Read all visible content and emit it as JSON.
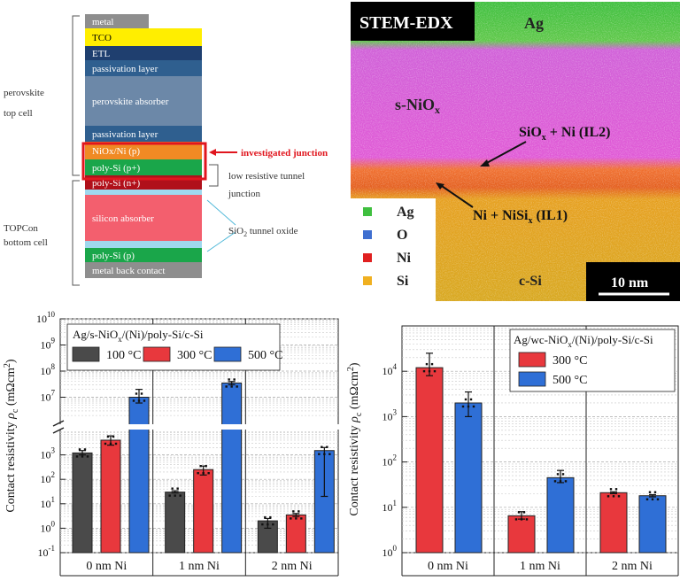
{
  "stack": {
    "layers": [
      {
        "label": "metal",
        "color": "#8e8e8e",
        "text": "#ffffff"
      },
      {
        "label": "TCO",
        "color": "#ffee00",
        "text": "#000000"
      },
      {
        "label": "ETL",
        "color": "#1f3f6f",
        "text": "#ffffff"
      },
      {
        "label": "passivation layer",
        "color": "#2f5f8f",
        "text": "#ffffff"
      },
      {
        "label": "perovskite absorber",
        "color": "#6c88a8",
        "text": "#ffffff"
      },
      {
        "label": "passivation layer",
        "color": "#2f5f8f",
        "text": "#ffffff"
      },
      {
        "label": "NiOx/Ni (p)",
        "color": "#f08a24",
        "text": "#ffffff"
      },
      {
        "label": "poly-Si (p+)",
        "color": "#1aa64a",
        "text": "#ffffff"
      },
      {
        "label": "poly-Si (n+)",
        "color": "#b0101a",
        "text": "#ffffff"
      },
      {
        "label": "",
        "color": "#9fd8ee",
        "text": "#000000"
      },
      {
        "label": "silicon absorber",
        "color": "#f35f6e",
        "text": "#ffffff"
      },
      {
        "label": "",
        "color": "#9fd8ee",
        "text": "#000000"
      },
      {
        "label": "poly-Si (p)",
        "color": "#1aa64a",
        "text": "#ffffff"
      },
      {
        "label": "metal back contact",
        "color": "#8e8e8e",
        "text": "#ffffff"
      }
    ],
    "cell_top": "perovskite top cell",
    "cell_bottom": "TOPCon bottom cell",
    "investigated": "investigated junction",
    "tunnel_junction": "low resistive tunnel junction",
    "tunnel_oxide": "SiO2 tunnel oxide"
  },
  "edx": {
    "title": "STEM-EDX",
    "labels": {
      "ag": "Ag",
      "snio": "s-NiOx",
      "il2": "SiOx + Ni (IL2)",
      "il1": "Ni + NiSix (IL1)",
      "csi": "c-Si"
    },
    "legend": [
      {
        "label": "Ag",
        "color": "#3fbf3f"
      },
      {
        "label": "O",
        "color": "#3f6fd0"
      },
      {
        "label": "Ni",
        "color": "#e02020"
      },
      {
        "label": "Si",
        "color": "#f0b020"
      }
    ],
    "scale": "10 nm"
  },
  "chart_data": [
    {
      "type": "bar",
      "title": "Ag/s-NiOx/(Ni)/poly-Si/c-Si",
      "ylabel": "Contact resistivity ρc (mΩcm²)",
      "categories": [
        "0 nm Ni",
        "1 nm Ni",
        "2 nm Ni"
      ],
      "y_scale": "log",
      "y_ticks": [
        "10-1",
        "100",
        "101",
        "102",
        "103",
        "107",
        "108",
        "109",
        "1010"
      ],
      "series": [
        {
          "name": "100 °C",
          "color": "#4a4a4a",
          "values": [
            1200,
            30,
            2
          ],
          "err_low": [
            1000,
            28,
            1
          ],
          "err_high": [
            1500,
            34,
            2.5
          ]
        },
        {
          "name": "300 °C",
          "color": "#e8383d",
          "values": [
            4000,
            250,
            3.5
          ],
          "err_low": [
            2500,
            150,
            3
          ],
          "err_high": [
            6000,
            350,
            4
          ]
        },
        {
          "name": "500 °C",
          "color": "#2f6fd6",
          "values": [
            10000000,
            35000000,
            1500
          ],
          "err_low": [
            6000000,
            30000000,
            20
          ],
          "err_high": [
            20000000,
            40000000,
            2000
          ]
        }
      ]
    },
    {
      "type": "bar",
      "title": "Ag/wc-NiOx/(Ni)/poly-Si/c-Si",
      "ylabel": "Contact resistivity ρc (mΩcm²)",
      "categories": [
        "0 nm Ni",
        "1 nm Ni",
        "2 nm Ni"
      ],
      "y_scale": "log",
      "ylim": [
        1,
        100000
      ],
      "y_ticks": [
        "100",
        "101",
        "102",
        "103",
        "104"
      ],
      "series": [
        {
          "name": "300 °C",
          "color": "#e8383d",
          "values": [
            12000,
            6.5,
            21
          ],
          "err_low": [
            8000,
            5.5,
            20
          ],
          "err_high": [
            25000,
            8,
            22
          ]
        },
        {
          "name": "500 °C",
          "color": "#2f6fd6",
          "values": [
            2000,
            45,
            18
          ],
          "err_low": [
            1000,
            35,
            17
          ],
          "err_high": [
            3500,
            65,
            19
          ]
        }
      ]
    }
  ]
}
